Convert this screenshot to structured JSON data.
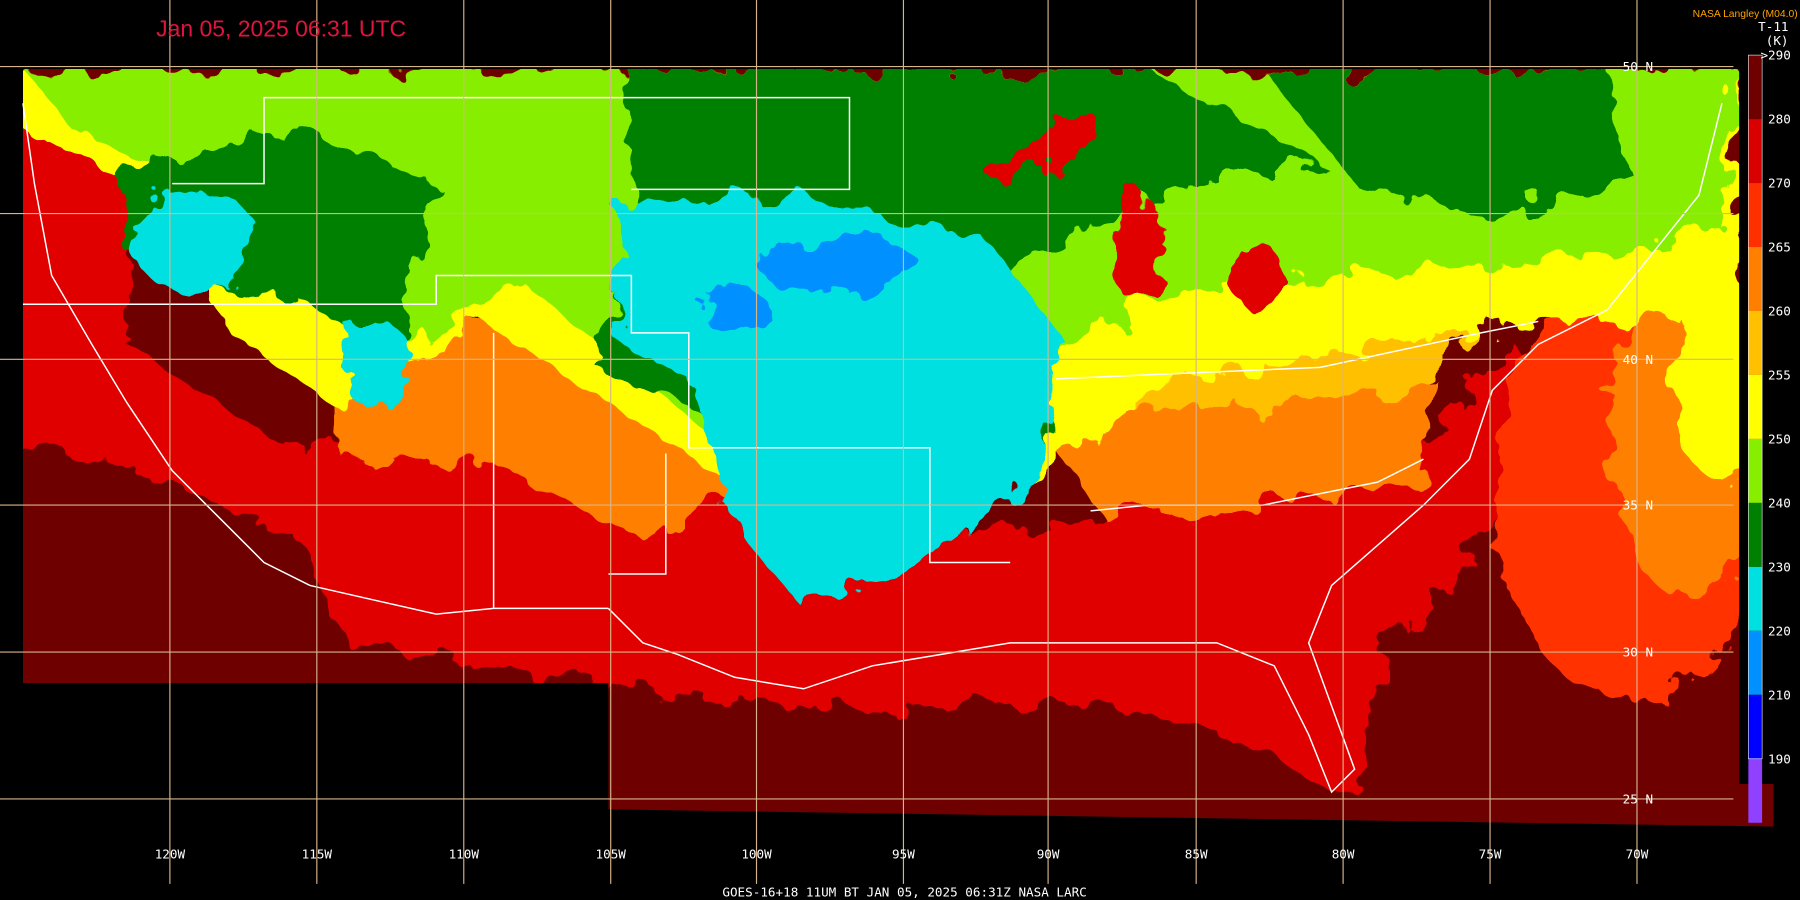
{
  "header": {
    "title": "Jan 05, 2025 06:31 UTC",
    "credit": "NASA Langley (M04.0)",
    "product": "T-11",
    "units": "(K)"
  },
  "colorbar": {
    "labels": [
      ">290",
      "280",
      "270",
      "265",
      "260",
      "255",
      "250",
      "240",
      "230",
      "220",
      "210",
      "190"
    ],
    "colors": [
      "#6e0000",
      "#d80000",
      "#ff3000",
      "#ff8000",
      "#ffc000",
      "#ffff00",
      "#88ee00",
      "#008000",
      "#00e0e0",
      "#0090ff",
      "#0000ff",
      "#9040ff"
    ]
  },
  "grid": {
    "lat_labels": [
      "50 N",
      "40 N",
      "35 N",
      "30 N",
      "25 N"
    ],
    "lon_labels": [
      "120W",
      "115W",
      "110W",
      "105W",
      "100W",
      "95W",
      "90W",
      "85W",
      "80W",
      "75W",
      "70W"
    ]
  },
  "footer": "GOES-16+18  11UM BT  JAN 05, 2025 06:31Z  NASA LARC"
}
